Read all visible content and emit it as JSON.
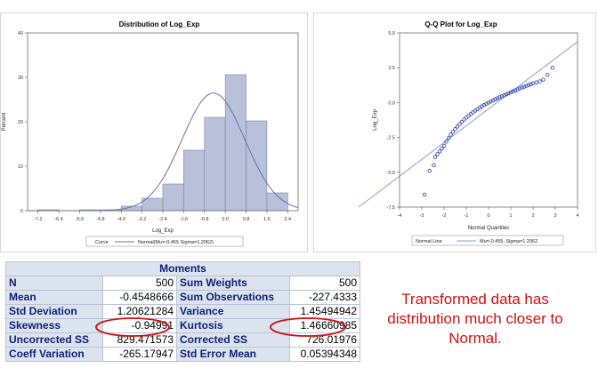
{
  "colors": {
    "bar_fill": "#b9c0da",
    "bar_stroke": "#7a84a8",
    "curve": "#6a72aa",
    "point": "#2c3bb0",
    "qq_line": "#8aa0c8",
    "table_header_bg": "#dae3ee",
    "table_label_text": "#112277",
    "annotation": "#cc1111"
  },
  "histogram": {
    "title": "Distribution of Log_Exp",
    "xlabel": "Log_Exp",
    "ylabel": "Percent",
    "x_ticks": [
      "-7.2",
      "-6.4",
      "-5.6",
      "-4.8",
      "-4.0",
      "-3.2",
      "-2.4",
      "-1.6",
      "-0.8",
      "0.0",
      "0.8",
      "1.6",
      "2.4"
    ],
    "y_ticks": [
      "0",
      "10",
      "20",
      "30",
      "40"
    ],
    "legend_label": "Curve",
    "legend_text": "Normal(Mu=-0.455 Sigma=1.2062)"
  },
  "qq": {
    "title": "Q-Q Plot for Log_Exp",
    "xlabel": "Normal Quantiles",
    "ylabel": "Log_Exp",
    "x_ticks": [
      "-4",
      "-3",
      "-2",
      "-1",
      "0",
      "1",
      "2",
      "3",
      "4"
    ],
    "y_ticks": [
      "-7.5",
      "-5.0",
      "-2.5",
      "0.0",
      "2.5",
      "5.0"
    ],
    "legend_label": "Normal Line",
    "legend_text": "Mu=-0.455, Sigma=1.2062"
  },
  "moments": {
    "title": "Moments",
    "rows": [
      [
        "N",
        "500",
        "Sum Weights",
        "500"
      ],
      [
        "Mean",
        "-0.4548666",
        "Sum Observations",
        "-227.4333"
      ],
      [
        "Std Deviation",
        "1.20621284",
        "Variance",
        "1.45494942"
      ],
      [
        "Skewness",
        "-0.94991",
        "Kurtosis",
        "1.46660985"
      ],
      [
        "Uncorrected SS",
        "829.471573",
        "Corrected SS",
        "726.01976"
      ],
      [
        "Coeff Variation",
        "-265.17947",
        "Std Error Mean",
        "0.05394348"
      ]
    ]
  },
  "annotation": "Transformed data has distribution much closer to Normal.",
  "chart_data": [
    {
      "type": "bar",
      "title": "Distribution of Log_Exp",
      "xlabel": "Log_Exp",
      "ylabel": "Percent",
      "bin_width": 0.8,
      "bin_midpoints": [
        -6.8,
        -6.0,
        -5.2,
        -4.4,
        -3.6,
        -2.8,
        -2.0,
        -1.2,
        -0.4,
        0.4,
        1.2,
        2.0
      ],
      "values": [
        0.2,
        0,
        0.2,
        0.2,
        1.0,
        2.8,
        6.0,
        13.6,
        21.0,
        30.6,
        20.2,
        4.0
      ],
      "xlim": [
        -7.6,
        2.8
      ],
      "ylim": [
        0,
        40
      ],
      "overlay": {
        "type": "normal_curve",
        "mu": -0.455,
        "sigma": 1.2062,
        "name": "Normal(Mu=-0.455 Sigma=1.2062)"
      },
      "legend": "bottom"
    },
    {
      "type": "scatter",
      "title": "Q-Q Plot for Log_Exp",
      "xlabel": "Normal Quantiles",
      "ylabel": "Log_Exp",
      "xlim": [
        -4,
        4
      ],
      "ylim": [
        -7.5,
        5.0
      ],
      "reference_line": {
        "intercept": -0.455,
        "slope": 1.2062,
        "name": "Mu=-0.455, Sigma=1.2062"
      },
      "points": {
        "x": [
          -2.88,
          -2.65,
          -2.46,
          -2.4,
          -2.3,
          -2.2,
          -2.1,
          -2.0,
          -1.9,
          -1.8,
          -1.7,
          -1.6,
          -1.5,
          -1.4,
          -1.3,
          -1.2,
          -1.1,
          -1.0,
          -0.9,
          -0.8,
          -0.7,
          -0.6,
          -0.5,
          -0.4,
          -0.3,
          -0.2,
          -0.1,
          0.0,
          0.1,
          0.2,
          0.3,
          0.4,
          0.5,
          0.6,
          0.7,
          0.8,
          0.9,
          1.0,
          1.1,
          1.2,
          1.3,
          1.4,
          1.5,
          1.6,
          1.7,
          1.8,
          1.9,
          2.0,
          2.15,
          2.3,
          2.46,
          2.65,
          2.88
        ],
        "y": [
          -6.6,
          -4.9,
          -4.5,
          -3.9,
          -3.7,
          -3.5,
          -3.3,
          -3.1,
          -2.8,
          -2.55,
          -2.3,
          -2.1,
          -1.9,
          -1.72,
          -1.55,
          -1.38,
          -1.22,
          -1.08,
          -0.95,
          -0.82,
          -0.7,
          -0.58,
          -0.47,
          -0.37,
          -0.27,
          -0.18,
          -0.09,
          0.0,
          0.08,
          0.16,
          0.24,
          0.31,
          0.38,
          0.45,
          0.52,
          0.59,
          0.66,
          0.73,
          0.8,
          0.87,
          0.94,
          1.01,
          1.08,
          1.14,
          1.2,
          1.26,
          1.32,
          1.38,
          1.45,
          1.52,
          1.65,
          2.0,
          2.5
        ]
      },
      "legend": "bottom"
    }
  ]
}
